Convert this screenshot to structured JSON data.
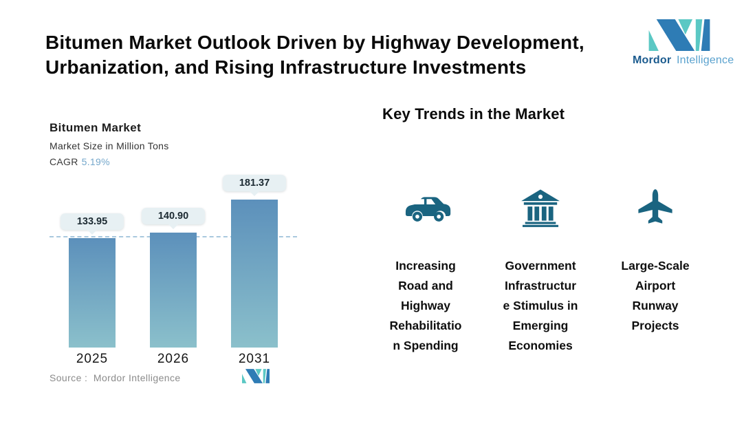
{
  "header": {
    "title_line1": "Bitumen Market Outlook Driven by Highway Development,",
    "title_line2": "Urbanization, and Rising Infrastructure Investments"
  },
  "brand": {
    "wordmark_bold": "Mordor",
    "wordmark_regular": "Intelligence",
    "blue": "#2E7CB5",
    "teal": "#5BC8C4",
    "wordmark_bold_color": "#1C5C8F",
    "wordmark_regular_color": "#5AA2CE"
  },
  "chart_data": {
    "type": "bar",
    "title": "Bitumen Market",
    "subtitle": "Market Size in Million Tons",
    "cagr_label": "CAGR",
    "cagr_value": "5.19%",
    "accent_color": "#74A7CB",
    "categories": [
      "2025",
      "2026",
      "2031"
    ],
    "values": [
      133.95,
      140.9,
      181.37
    ],
    "labels": [
      "133.95",
      "140.90",
      "181.37"
    ],
    "reference_line_value": 135,
    "reference_line_style": "dashed",
    "reference_line_color": "#A9C8DE",
    "bar_gradient_top": "#5C90BB",
    "bar_gradient_bottom": "#8BC0CB",
    "grid": false,
    "legend": "none",
    "source": "Source :  Mordor Intelligence"
  },
  "trends": {
    "heading": "Key Trends in the Market",
    "icon_color": "#1A6480",
    "items": [
      {
        "icon": "car-icon",
        "label": "Increasing\nRoad and\nHighway\nRehabilitatio\nn Spending"
      },
      {
        "icon": "bank-icon",
        "label": "Government\nInfrastructur\ne Stimulus in\nEmerging\nEconomies"
      },
      {
        "icon": "airplane-icon",
        "label": "Large-Scale\nAirport\nRunway\nProjects"
      }
    ]
  }
}
